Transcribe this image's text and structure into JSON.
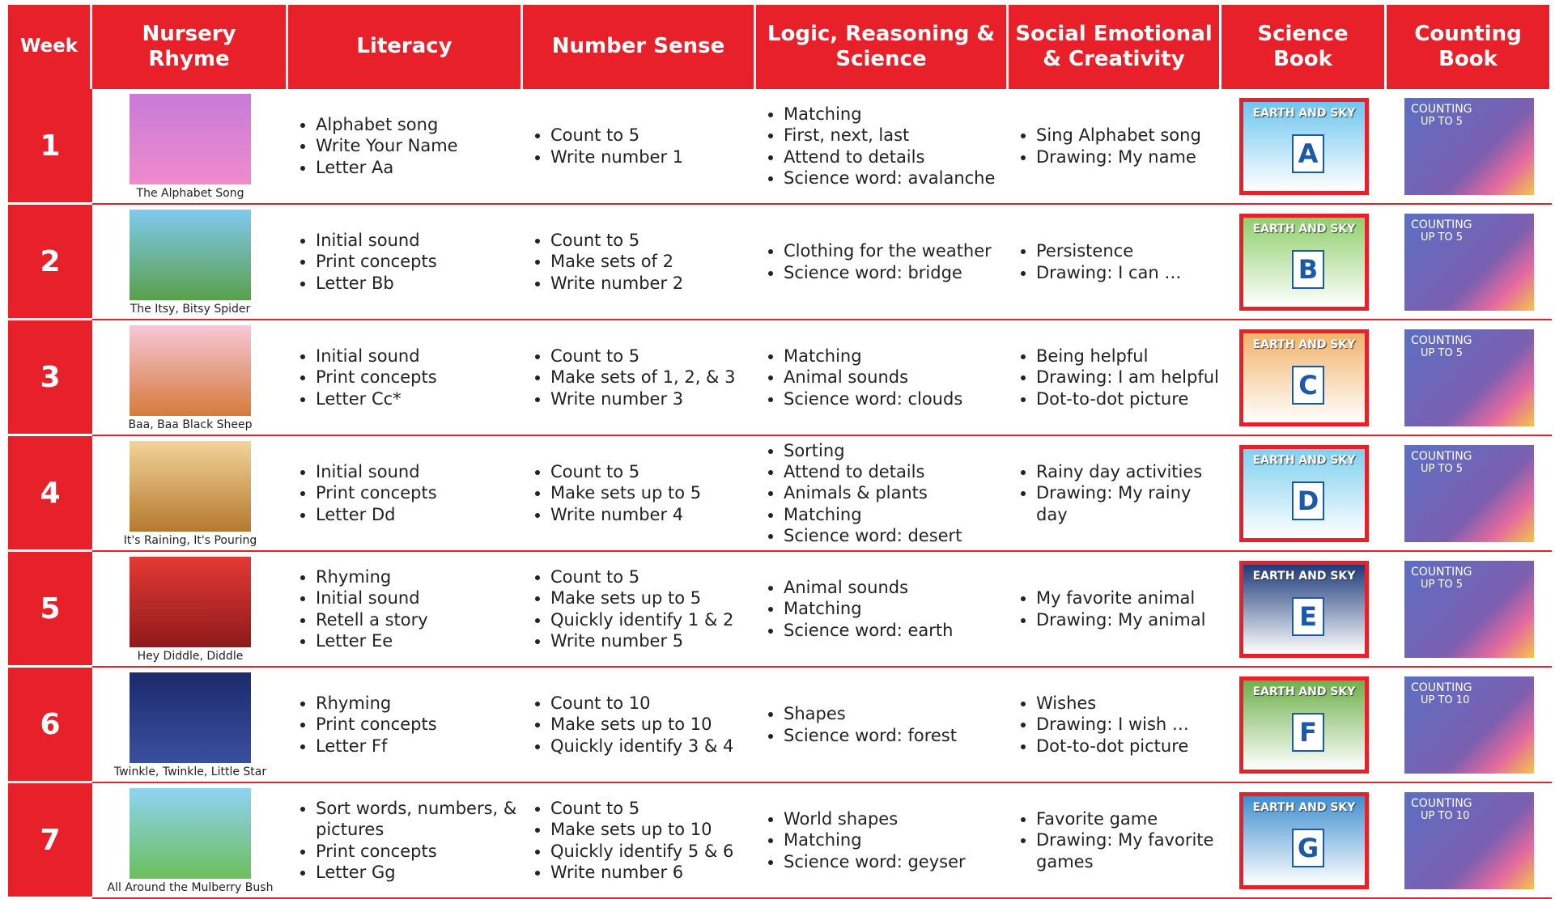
{
  "header": [
    "Week",
    "Nursery Rhyme",
    "Literacy",
    "Number Sense",
    "Logic, Reasoning & Science",
    "Social Emotional & Creativity",
    "Science Book",
    "Counting Book"
  ],
  "rows": [
    {
      "week": "1",
      "rhyme": "The Alphabet Song",
      "literacy": [
        "Alphabet song",
        "Write Your Name",
        "Letter Aa"
      ],
      "number_sense": [
        "Count to 5",
        "Write number 1"
      ],
      "logic": [
        "Matching",
        "First, next, last",
        "Attend to details",
        "Science word: avalanche"
      ],
      "social": [
        "Sing Alphabet song",
        "Drawing: My name"
      ],
      "science_book": {
        "title": "EARTH AND SKY",
        "letter": "A"
      },
      "counting_book": {
        "title": "COUNTING",
        "subtitle": "UP TO 5"
      }
    },
    {
      "week": "2",
      "rhyme": "The Itsy, Bitsy Spider",
      "literacy": [
        "Initial sound",
        "Print concepts",
        "Letter Bb"
      ],
      "number_sense": [
        "Count to 5",
        "Make sets of 2",
        "Write number 2"
      ],
      "logic": [
        "Clothing for the weather",
        "Science word: bridge"
      ],
      "social": [
        "Persistence",
        "Drawing: I can …"
      ],
      "science_book": {
        "title": "EARTH AND SKY",
        "letter": "B"
      },
      "counting_book": {
        "title": "COUNTING",
        "subtitle": "UP TO 5"
      }
    },
    {
      "week": "3",
      "rhyme": "Baa, Baa Black Sheep",
      "literacy": [
        "Initial sound",
        "Print concepts",
        "Letter Cc*"
      ],
      "number_sense": [
        "Count to 5",
        "Make sets of 1, 2, & 3",
        "Write number 3"
      ],
      "logic": [
        "Matching",
        "Animal sounds",
        "Science word: clouds"
      ],
      "social": [
        "Being helpful",
        "Drawing: I am helpful",
        "Dot-to-dot picture"
      ],
      "science_book": {
        "title": "EARTH AND SKY",
        "letter": "C"
      },
      "counting_book": {
        "title": "COUNTING",
        "subtitle": "UP TO 5"
      }
    },
    {
      "week": "4",
      "rhyme": "It's Raining, It's Pouring",
      "literacy": [
        "Initial sound",
        "Print concepts",
        "Letter Dd"
      ],
      "number_sense": [
        "Count to 5",
        "Make sets up to 5",
        "Write number 4"
      ],
      "logic": [
        "Sorting",
        "Attend to details",
        "Animals & plants",
        "Matching",
        "Science word: desert"
      ],
      "social": [
        "Rainy day activities",
        "Drawing: My rainy day"
      ],
      "science_book": {
        "title": "EARTH AND SKY",
        "letter": "D"
      },
      "counting_book": {
        "title": "COUNTING",
        "subtitle": "UP TO 5"
      }
    },
    {
      "week": "5",
      "rhyme": "Hey Diddle, Diddle",
      "literacy": [
        "Rhyming",
        "Initial sound",
        "Retell a story",
        "Letter Ee"
      ],
      "number_sense": [
        "Count to 5",
        "Make sets up to 5",
        "Quickly identify 1 & 2",
        "Write number 5"
      ],
      "logic": [
        "Animal sounds",
        "Matching",
        "Science word: earth"
      ],
      "social": [
        "My favorite animal",
        "Drawing: My animal"
      ],
      "science_book": {
        "title": "EARTH AND SKY",
        "letter": "E"
      },
      "counting_book": {
        "title": "COUNTING",
        "subtitle": "UP TO 5"
      }
    },
    {
      "week": "6",
      "rhyme": "Twinkle, Twinkle, Little Star",
      "literacy": [
        "Rhyming",
        "Print concepts",
        "Letter Ff"
      ],
      "number_sense": [
        "Count to 10",
        "Make sets up to 10",
        "Quickly identify 3 & 4"
      ],
      "logic": [
        "Shapes",
        "Science word: forest"
      ],
      "social": [
        "Wishes",
        "Drawing: I wish …",
        "Dot-to-dot picture"
      ],
      "science_book": {
        "title": "EARTH AND SKY",
        "letter": "F"
      },
      "counting_book": {
        "title": "COUNTING",
        "subtitle": "UP TO 10"
      }
    },
    {
      "week": "7",
      "rhyme": "All Around the Mulberry Bush",
      "literacy": [
        "Sort words, numbers, & pictures",
        "Print concepts",
        "Letter Gg"
      ],
      "number_sense": [
        "Count to 5",
        "Make sets up to 10",
        "Quickly identify 5 & 6",
        "Write number 6"
      ],
      "logic": [
        "World shapes",
        "Matching",
        "Science word: geyser"
      ],
      "social": [
        "Favorite game",
        "Drawing: My favorite games"
      ],
      "science_book": {
        "title": "EARTH AND SKY",
        "letter": "G"
      },
      "counting_book": {
        "title": "COUNTING",
        "subtitle": "UP TO 10"
      }
    }
  ]
}
